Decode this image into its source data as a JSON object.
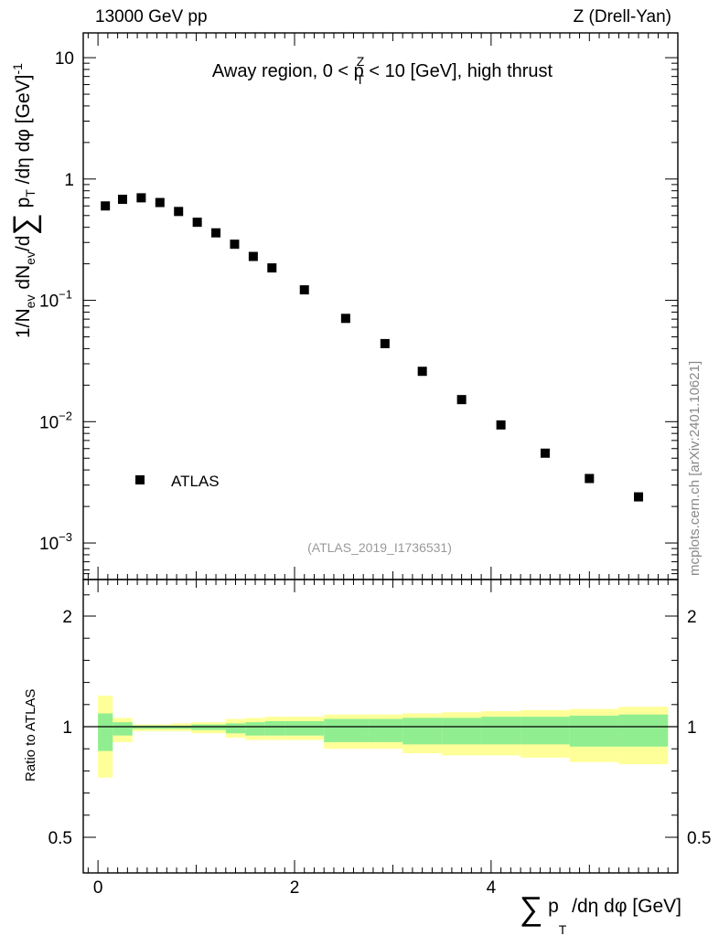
{
  "header": {
    "energy_label": "13000 GeV pp",
    "process_label": "Z (Drell-Yan)"
  },
  "watermark": "mcplots.cern.ch [arXiv:2401.10621]",
  "chart_data": [
    {
      "type": "scatter",
      "panel": "main",
      "title_prefix": "Away region, 0 < p",
      "title_sup": "Z",
      "title_sub": "T",
      "title_suffix": " < 10 [GeV], high thrust",
      "ylabel": "1/N_ev dN_ev/d Σ p_T /dη dφ [GeV]^-1",
      "ylabel_parts": {
        "a": "1/N",
        "a_sub": "ev",
        "b": " dN",
        "b_sub": "ev",
        "c": "/d",
        "sum": "∑",
        "d": " p",
        "d_sub": "T",
        "e": " /dη dφ  [GeV]",
        "e_sup": "-1"
      },
      "yscale": "log",
      "ylim": [
        0.0005,
        16
      ],
      "y_ticks": [
        {
          "value": 10,
          "label": "10"
        },
        {
          "value": 1,
          "label": "1"
        },
        {
          "value": 0.1,
          "base": "10",
          "exp": "−1"
        },
        {
          "value": 0.01,
          "base": "10",
          "exp": "−2"
        },
        {
          "value": 0.001,
          "base": "10",
          "exp": "−3"
        }
      ],
      "reference": "(ATLAS_2019_I1736531)",
      "legend": [
        {
          "name": "ATLAS",
          "marker": "square",
          "color": "#000000"
        }
      ],
      "series": [
        {
          "name": "ATLAS",
          "x": [
            0.075,
            0.25,
            0.44,
            0.63,
            0.82,
            1.01,
            1.2,
            1.39,
            1.58,
            1.77,
            2.1,
            2.52,
            2.92,
            3.3,
            3.7,
            4.1,
            4.55,
            5.0,
            5.5
          ],
          "y": [
            0.6,
            0.68,
            0.7,
            0.64,
            0.54,
            0.44,
            0.36,
            0.29,
            0.23,
            0.185,
            0.122,
            0.071,
            0.044,
            0.026,
            0.0152,
            0.0094,
            0.0055,
            0.0034,
            0.0024
          ]
        }
      ]
    },
    {
      "type": "area",
      "panel": "ratio",
      "ylabel": "Ratio to ATLAS",
      "xlabel_parts": {
        "sum": "∑",
        "p": " p",
        "p_sub": "T",
        "rest": " /dη dφ [GeV]"
      },
      "xlim": [
        -0.15,
        5.9
      ],
      "ylim": [
        0.4,
        2.5
      ],
      "x_ticks": [
        {
          "value": 0,
          "label": "0"
        },
        {
          "value": 2,
          "label": "2"
        },
        {
          "value": 4,
          "label": "4"
        }
      ],
      "y_ticks_left": [
        {
          "value": 2,
          "label": "2"
        },
        {
          "value": 1,
          "label": "1"
        },
        {
          "value": 0.5,
          "label": "0.5"
        }
      ],
      "y_ticks_right": [
        {
          "value": 2,
          "label": "2"
        },
        {
          "value": 1,
          "label": "1"
        },
        {
          "value": 0.5,
          "label": "0.5"
        }
      ],
      "reference_line": 1.0,
      "bin_edges": [
        0.0,
        0.15,
        0.35,
        0.55,
        0.75,
        0.95,
        1.15,
        1.3,
        1.5,
        1.7,
        1.9,
        2.3,
        2.75,
        3.1,
        3.5,
        3.9,
        4.3,
        4.8,
        5.3,
        5.8
      ],
      "stat_band": {
        "color": "#90ee90",
        "lower": [
          0.89,
          0.96,
          0.99,
          0.99,
          0.99,
          0.985,
          0.985,
          0.97,
          0.96,
          0.96,
          0.96,
          0.93,
          0.93,
          0.92,
          0.92,
          0.92,
          0.92,
          0.91,
          0.91
        ],
        "upper": [
          1.12,
          1.04,
          1.01,
          1.01,
          1.01,
          1.02,
          1.02,
          1.03,
          1.04,
          1.05,
          1.05,
          1.07,
          1.07,
          1.08,
          1.08,
          1.09,
          1.09,
          1.1,
          1.11
        ]
      },
      "total_band": {
        "color": "#ffff99",
        "lower": [
          0.77,
          0.93,
          0.98,
          0.98,
          0.98,
          0.97,
          0.97,
          0.95,
          0.94,
          0.94,
          0.94,
          0.9,
          0.9,
          0.88,
          0.87,
          0.87,
          0.86,
          0.84,
          0.83
        ],
        "upper": [
          1.28,
          1.08,
          1.02,
          1.02,
          1.03,
          1.04,
          1.04,
          1.07,
          1.08,
          1.09,
          1.09,
          1.11,
          1.11,
          1.12,
          1.13,
          1.14,
          1.15,
          1.16,
          1.18
        ]
      }
    }
  ]
}
